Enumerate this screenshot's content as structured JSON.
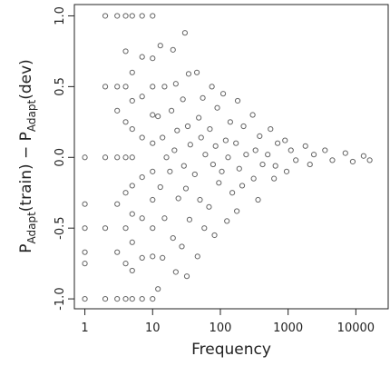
{
  "chart_data": {
    "type": "scatter",
    "x_label": "Frequency",
    "y_label": {
      "p1": "P",
      "sub1": "Adapt",
      "mid": "(train) − P",
      "sub2": "Adapt",
      "end": "(dev)"
    },
    "log_x": true,
    "color": "#333333",
    "xlim": [
      0.7,
      30000
    ],
    "ylim": [
      -1.07,
      1.08
    ],
    "xticks": [
      1,
      10,
      100,
      1000,
      10000
    ],
    "yticks": [
      {
        "value": -1,
        "label": "-1.0"
      },
      -0.5,
      {
        "value": 0,
        "label": "0.0"
      },
      0.5,
      {
        "value": 1,
        "label": "1.0"
      }
    ],
    "x": [
      1,
      1,
      1,
      1,
      1,
      1,
      2,
      2,
      2,
      2,
      2,
      3,
      3,
      3,
      3,
      3,
      3,
      3,
      4,
      4,
      4,
      4,
      4,
      4,
      4,
      4,
      4,
      5,
      5,
      5,
      5,
      5,
      5,
      5,
      5,
      5,
      5,
      7,
      7,
      7,
      7,
      7,
      7,
      7,
      7,
      10,
      10,
      10,
      10,
      10,
      10,
      10,
      10,
      10,
      10,
      13,
      15,
      12,
      14,
      16,
      13,
      15,
      14,
      12,
      20,
      22,
      19,
      23,
      21,
      18,
      24,
      20,
      22,
      30,
      34,
      28,
      33,
      36,
      29,
      31,
      35,
      27,
      32,
      45,
      55,
      48,
      52,
      60,
      42,
      50,
      58,
      46,
      75,
      90,
      70,
      85,
      78,
      95,
      68,
      82,
      110,
      140,
      120,
      130,
      105,
      150,
      125,
      180,
      220,
      170,
      240,
      190,
      210,
      175,
      300,
      380,
      330,
      420,
      310,
      360,
      550,
      700,
      500,
      650,
      620,
      900,
      1100,
      1300,
      950,
      1800,
      2400,
      2100,
      3500,
      4500,
      7000,
      9000,
      13000,
      16000
    ],
    "y": [
      0,
      -0.33,
      -0.5,
      -0.67,
      -0.75,
      -1,
      1,
      0.5,
      0,
      -0.5,
      -1,
      1,
      0.5,
      0.33,
      0,
      -0.33,
      -0.67,
      -1,
      1,
      0.75,
      0.5,
      0.25,
      0,
      -0.25,
      -0.5,
      -0.75,
      -1,
      1,
      0.6,
      0.4,
      0.2,
      0,
      -0.2,
      -0.4,
      -0.6,
      -0.8,
      -1,
      1,
      0.71,
      0.43,
      0.14,
      -0.14,
      -0.43,
      -0.71,
      -1,
      1,
      0.7,
      0.5,
      0.3,
      0.1,
      -0.1,
      -0.3,
      -0.5,
      -0.7,
      -1,
      0.79,
      0.5,
      0.29,
      0.14,
      0,
      -0.21,
      -0.43,
      -0.71,
      -0.93,
      0.76,
      0.52,
      0.33,
      0.19,
      0.05,
      -0.1,
      -0.29,
      -0.57,
      -0.81,
      0.88,
      0.59,
      0.41,
      0.22,
      0.09,
      -0.06,
      -0.22,
      -0.44,
      -0.63,
      -0.84,
      0.6,
      0.42,
      0.28,
      0.14,
      0.02,
      -0.12,
      -0.3,
      -0.5,
      -0.7,
      0.5,
      0.35,
      0.2,
      0.08,
      -0.05,
      -0.18,
      -0.35,
      -0.55,
      0.45,
      0.25,
      0.12,
      0,
      -0.1,
      -0.25,
      -0.45,
      0.4,
      0.22,
      0.1,
      0.02,
      -0.08,
      -0.2,
      -0.38,
      0.3,
      0.15,
      0.05,
      -0.05,
      -0.15,
      -0.3,
      0.2,
      0.1,
      0.02,
      -0.06,
      -0.15,
      0.12,
      0.05,
      -0.02,
      -0.1,
      0.08,
      0.02,
      -0.05,
      0.05,
      -0.02,
      0.03,
      -0.03,
      0.01,
      -0.02
    ]
  }
}
